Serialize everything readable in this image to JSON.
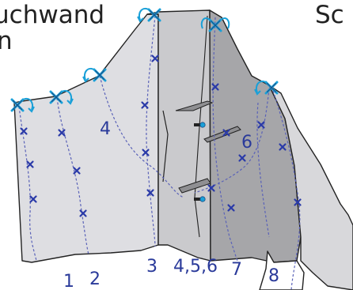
{
  "header": {
    "title_left": "uchwand",
    "title_left_line2": "n",
    "title_right": "Sc"
  },
  "route_labels": [
    "1",
    "2",
    "3",
    "4,5,6",
    "7",
    "8"
  ],
  "area_labels": [
    "4",
    "6"
  ],
  "colors": {
    "rock_light": "#dedee2",
    "rock_mid": "#cacacd",
    "rock_dark": "#a6a6a9",
    "outline": "#222222",
    "route_line": "#5a62b8",
    "bolt": "#2a3aa8",
    "anchor": "#1aa0d8",
    "label": "#2a3a9a"
  }
}
